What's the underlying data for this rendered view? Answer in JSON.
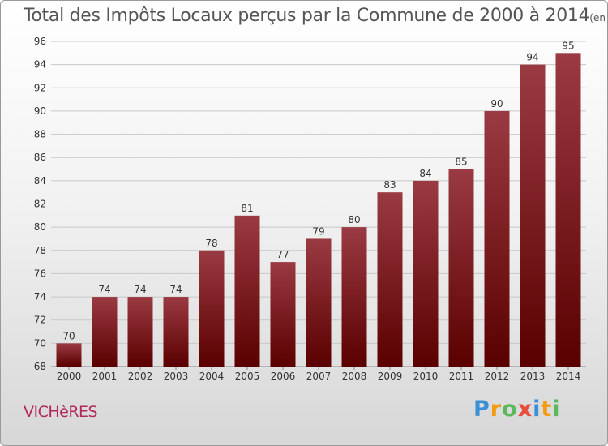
{
  "title": {
    "main": "Total des Impôts Locaux perçus par la Commune de 2000 à 2014",
    "unit": "(en milliers d'€)"
  },
  "commune": "VICHèRES",
  "logo": {
    "text": "Proxiti",
    "letters": [
      {
        "ch": "P",
        "color": "#3b8fd6"
      },
      {
        "ch": "r",
        "color": "#f39c12"
      },
      {
        "ch": "o",
        "color": "#5cb85c"
      },
      {
        "ch": "x",
        "color": "#e74c3c"
      },
      {
        "ch": "i",
        "color": "#3b8fd6"
      },
      {
        "ch": "t",
        "color": "#f39c12"
      },
      {
        "ch": "i",
        "color": "#5cb85c"
      }
    ]
  },
  "chart_data": {
    "type": "bar",
    "title": "Total des Impôts Locaux perçus par la Commune de 2000 à 2014",
    "xlabel": "",
    "ylabel": "",
    "categories": [
      "2000",
      "2001",
      "2002",
      "2003",
      "2004",
      "2005",
      "2006",
      "2007",
      "2008",
      "2009",
      "2010",
      "2011",
      "2012",
      "2013",
      "2014"
    ],
    "values": [
      70,
      74,
      74,
      74,
      78,
      81,
      77,
      79,
      80,
      83,
      84,
      85,
      90,
      94,
      95
    ],
    "ylim": [
      68,
      96
    ],
    "yticks": [
      68,
      70,
      72,
      74,
      76,
      78,
      80,
      82,
      84,
      86,
      88,
      90,
      92,
      94,
      96
    ],
    "grid": true,
    "bar_color_top": "#9a3a42",
    "bar_color_bottom": "#5a0000"
  }
}
